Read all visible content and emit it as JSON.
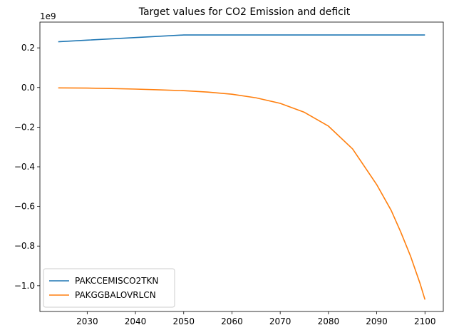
{
  "chart_data": {
    "type": "line",
    "title": "Target values for CO2 Emission and deficit",
    "xlabel": "",
    "ylabel": "",
    "y_offset_label": "1e9",
    "xlim": [
      2020.2,
      2103.8
    ],
    "ylim": [
      -1.13,
      0.33
    ],
    "x_ticks": [
      2030,
      2040,
      2050,
      2060,
      2070,
      2080,
      2090,
      2100
    ],
    "y_ticks": [
      0.2,
      0.0,
      -0.2,
      -0.4,
      -0.6,
      -0.8,
      -1.0
    ],
    "y_tick_labels": [
      "0.2",
      "0.0",
      "−0.2",
      "−0.4",
      "−0.6",
      "−0.8",
      "−1.0"
    ],
    "grid": false,
    "legend_position": "lower-left",
    "series": [
      {
        "name": "PAKCCEMISCO2TKN",
        "color": "#1f77b4",
        "x": [
          2024,
          2030,
          2040,
          2050,
          2060,
          2070,
          2080,
          2090,
          2100
        ],
        "y": [
          0.231,
          0.239,
          0.252,
          0.265,
          0.265,
          0.265,
          0.265,
          0.265,
          0.265
        ]
      },
      {
        "name": "PAKGGBALOVRLCN",
        "color": "#ff7f0e",
        "x": [
          2024,
          2030,
          2035,
          2040,
          2045,
          2050,
          2055,
          2060,
          2065,
          2070,
          2075,
          2080,
          2085,
          2090,
          2093,
          2095,
          2097,
          2099,
          2100
        ],
        "y": [
          -0.002,
          -0.003,
          -0.005,
          -0.008,
          -0.012,
          -0.016,
          -0.023,
          -0.034,
          -0.052,
          -0.08,
          -0.125,
          -0.195,
          -0.31,
          -0.49,
          -0.62,
          -0.73,
          -0.85,
          -0.99,
          -1.07
        ]
      }
    ]
  }
}
